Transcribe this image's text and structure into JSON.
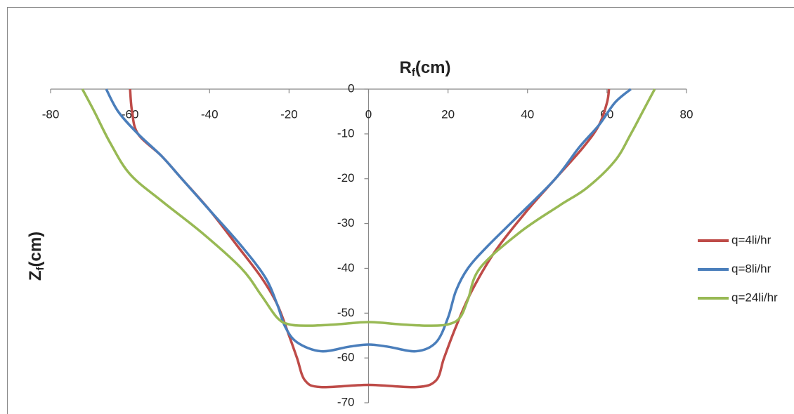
{
  "chart_data": {
    "type": "line",
    "title": "Rf(cm)",
    "y_label": "Zf(cm)",
    "xlim": [
      -80,
      80
    ],
    "xticks": [
      -80,
      -60,
      -40,
      -20,
      0,
      20,
      40,
      60,
      80
    ],
    "ylim": [
      -70,
      0
    ],
    "yticks": [
      0,
      -10,
      -20,
      -30,
      -40,
      -50,
      -60,
      -70
    ],
    "legend": "right",
    "series": [
      {
        "name": "q=4li/hr",
        "color": "#be4b48",
        "x": [
          -60,
          -59.5,
          -58,
          -52,
          -47,
          -40,
          -33,
          -27,
          -23,
          -20,
          -18,
          -16,
          -12,
          0,
          12,
          17,
          19,
          22,
          26,
          32,
          40,
          47,
          54,
          58,
          60,
          60.5
        ],
        "values": [
          0,
          -5,
          -10,
          -15,
          -20,
          -27,
          -35,
          -42,
          -48,
          -55,
          -60,
          -65,
          -66.5,
          -66,
          -66.5,
          -65,
          -60,
          -53,
          -45,
          -36,
          -27,
          -20,
          -13,
          -8,
          -3,
          0
        ]
      },
      {
        "name": "q=8li/hr",
        "color": "#4a7ebb",
        "x": [
          -66,
          -63,
          -58,
          -52,
          -47,
          -40,
          -32,
          -26,
          -23,
          -21,
          -18,
          -12,
          -5,
          0,
          5,
          12,
          17,
          20,
          22,
          25,
          30,
          38,
          47,
          53,
          58,
          62,
          66
        ],
        "values": [
          0,
          -5,
          -10,
          -15,
          -20,
          -27,
          -35,
          -42,
          -48,
          -53,
          -56.5,
          -58.5,
          -57.5,
          -57,
          -57.5,
          -58.5,
          -56.5,
          -51,
          -45,
          -40,
          -35,
          -28,
          -20,
          -13,
          -8,
          -3,
          0
        ]
      },
      {
        "name": "q=24li/hr",
        "color": "#98b954",
        "x": [
          -72,
          -69,
          -65,
          -60,
          -52,
          -42,
          -32,
          -27,
          -23,
          -20,
          -15,
          -8,
          0,
          8,
          15,
          20,
          23,
          25,
          28,
          38,
          48,
          55,
          62,
          66,
          69,
          72
        ],
        "values": [
          0,
          -5,
          -12,
          -19,
          -25,
          -32,
          -40,
          -46,
          -51,
          -52.5,
          -52.8,
          -52.5,
          -52,
          -52.5,
          -52.8,
          -52.5,
          -51,
          -47,
          -40,
          -32,
          -26,
          -22,
          -16,
          -10,
          -5,
          0
        ]
      }
    ]
  }
}
